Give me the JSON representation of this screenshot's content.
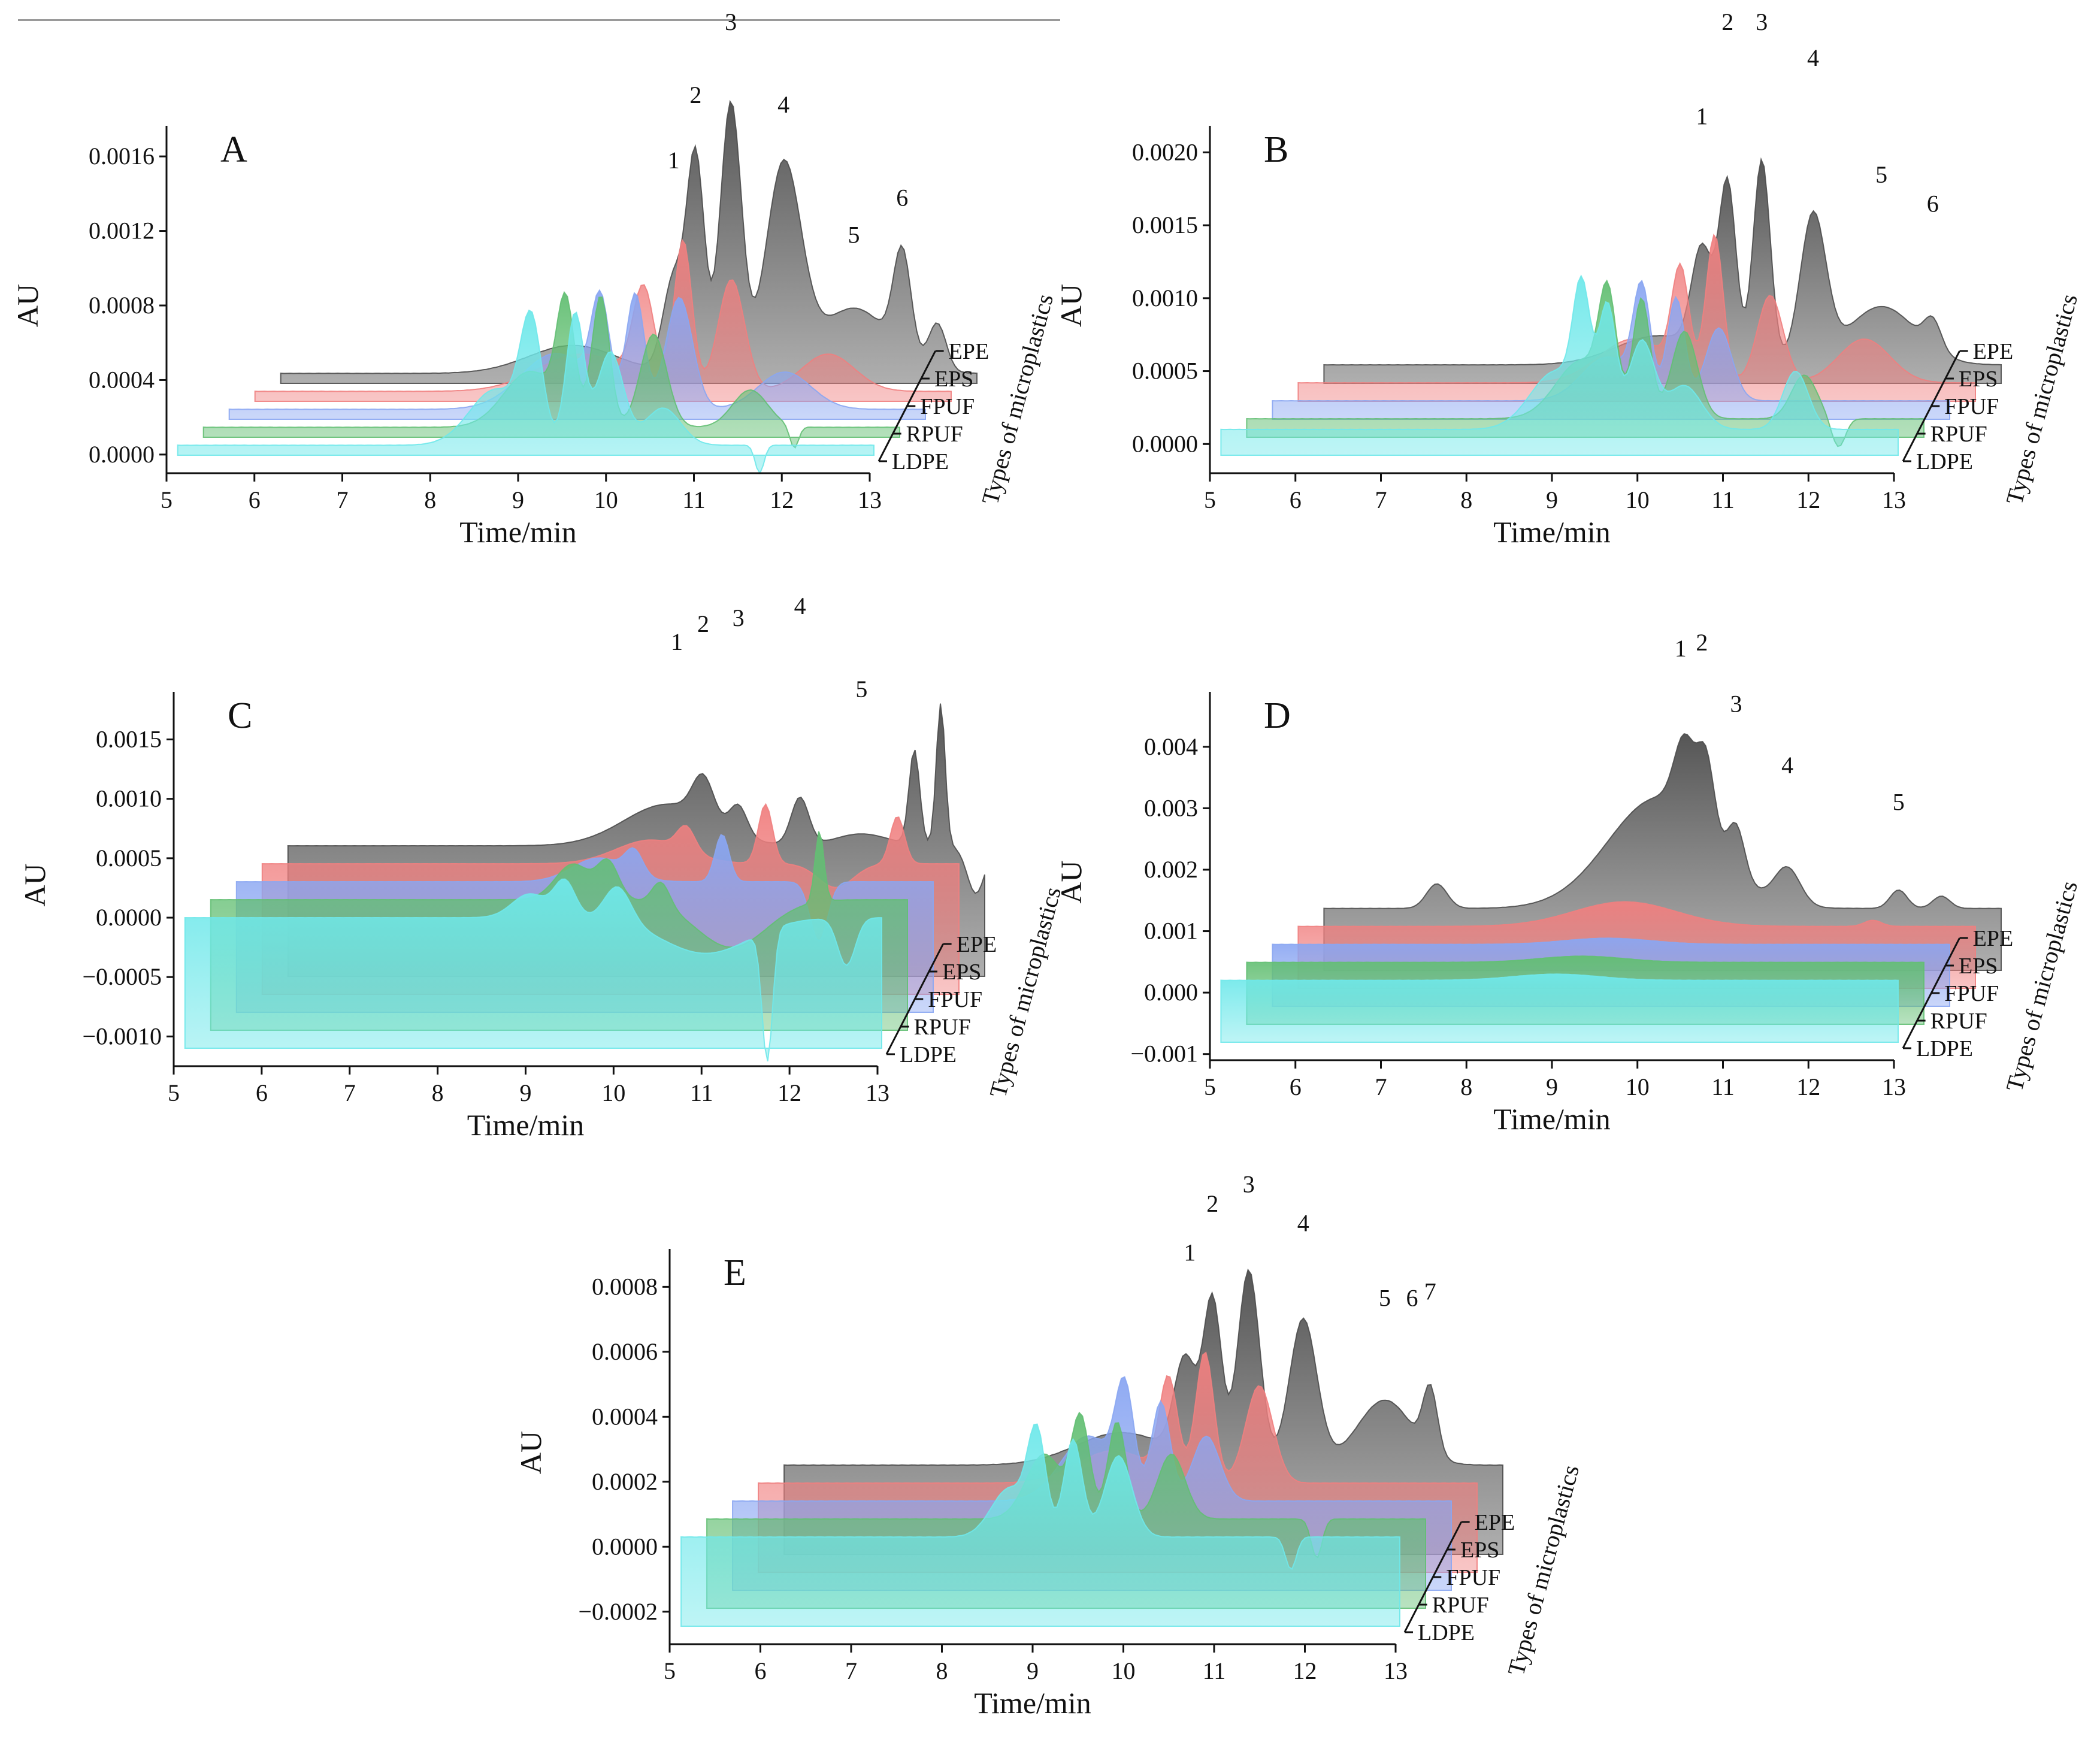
{
  "figure": {
    "depth_axis_title": "Types of microplastics",
    "series": [
      {
        "name": "EPE",
        "color": "#4d4d4d"
      },
      {
        "name": "EPS",
        "color": "#f08080"
      },
      {
        "name": "FPUF",
        "color": "#8aa6f2"
      },
      {
        "name": "RPUF",
        "color": "#63bf73"
      },
      {
        "name": "LDPE",
        "color": "#6fe8ea"
      }
    ]
  },
  "chart_data": [
    {
      "panel": "A",
      "type": "area",
      "xlabel": "Time/min",
      "ylabel": "AU",
      "zlabel": "Types of microplastics",
      "xlim": [
        5,
        13
      ],
      "ylim": [
        -0.0001,
        0.0017
      ],
      "x_ticks": [
        "5",
        "6",
        "7",
        "8",
        "9",
        "10",
        "11",
        "12",
        "13"
      ],
      "y_ticks": [
        {
          "v": 0.0,
          "label": "0.0000"
        },
        {
          "v": 0.0004,
          "label": "0.0004"
        },
        {
          "v": 0.0008,
          "label": "0.0008"
        },
        {
          "v": 0.0012,
          "label": "0.0012"
        },
        {
          "v": 0.0016,
          "label": "0.0016"
        }
      ],
      "series_order": [
        "EPE",
        "EPS",
        "FPUF",
        "RPUF",
        "LDPE"
      ],
      "baseline": {
        "EPE": 5e-05,
        "EPS": 5e-05,
        "FPUF": 5e-05,
        "RPUF": 5e-05,
        "LDPE": 5e-05
      },
      "peaks": {
        "EPE": [
          [
            8.4,
            0.00015,
            0.5
          ],
          [
            9.55,
            0.0005,
            0.12
          ],
          [
            9.8,
            0.00115,
            0.1
          ],
          [
            10.2,
            0.00145,
            0.12
          ],
          [
            10.8,
            0.0011,
            0.2
          ],
          [
            11.6,
            0.00035,
            0.4
          ],
          [
            12.15,
            0.00055,
            0.1
          ],
          [
            12.55,
            0.00025,
            0.1
          ]
        ],
        "EPS": [
          [
            8.8,
            0.0002,
            0.5
          ],
          [
            9.5,
            0.0005,
            0.12
          ],
          [
            9.95,
            0.0008,
            0.1
          ],
          [
            10.5,
            0.0006,
            0.15
          ],
          [
            11.6,
            0.0002,
            0.3
          ]
        ],
        "FPUF": [
          [
            8.8,
            0.0003,
            0.4
          ],
          [
            9.3,
            0.0005,
            0.1
          ],
          [
            9.7,
            0.0006,
            0.1
          ],
          [
            10.2,
            0.0006,
            0.15
          ],
          [
            11.4,
            0.0002,
            0.3
          ]
        ],
        "RPUF": [
          [
            8.8,
            0.0003,
            0.3
          ],
          [
            9.2,
            0.0006,
            0.1
          ],
          [
            9.6,
            0.0007,
            0.1
          ],
          [
            10.2,
            0.0005,
            0.15
          ],
          [
            11.3,
            0.0002,
            0.2
          ],
          [
            11.8,
            -0.00012,
            0.05
          ]
        ],
        "LDPE": [
          [
            8.7,
            0.0003,
            0.3
          ],
          [
            9.1,
            0.0006,
            0.12
          ],
          [
            9.6,
            0.0007,
            0.1
          ],
          [
            10.0,
            0.0005,
            0.15
          ],
          [
            10.6,
            0.0002,
            0.2
          ],
          [
            11.7,
            -0.00015,
            0.05
          ]
        ]
      },
      "peak_labels": [
        {
          "label": "1",
          "x": 9.55,
          "y": 0.00115
        },
        {
          "label": "2",
          "x": 9.8,
          "y": 0.0015
        },
        {
          "label": "3",
          "x": 10.2,
          "y": 0.0019
        },
        {
          "label": "4",
          "x": 10.8,
          "y": 0.00145
        },
        {
          "label": "5",
          "x": 11.6,
          "y": 0.00075
        },
        {
          "label": "6",
          "x": 12.15,
          "y": 0.00095
        }
      ]
    },
    {
      "panel": "B",
      "type": "area",
      "xlabel": "Time/min",
      "ylabel": "AU",
      "zlabel": "Types of microplastics",
      "xlim": [
        5,
        13
      ],
      "ylim": [
        -0.0002,
        0.0021
      ],
      "x_ticks": [
        "5",
        "6",
        "7",
        "8",
        "9",
        "10",
        "11",
        "12",
        "13"
      ],
      "y_ticks": [
        {
          "v": 0.0,
          "label": "0.0000"
        },
        {
          "v": 0.0005,
          "label": "0.0005"
        },
        {
          "v": 0.001,
          "label": "0.0010"
        },
        {
          "v": 0.0015,
          "label": "0.0015"
        },
        {
          "v": 0.002,
          "label": "0.0020"
        }
      ],
      "series_order": [
        "EPE",
        "EPS",
        "FPUF",
        "RPUF",
        "LDPE"
      ],
      "baseline": {
        "EPE": 5e-05,
        "EPS": 5e-05,
        "FPUF": 5e-05,
        "RPUF": 5e-05,
        "LDPE": 0.0001
      },
      "peaks": {
        "EPE": [
          [
            9.0,
            0.0002,
            0.5
          ],
          [
            9.5,
            0.0007,
            0.12
          ],
          [
            9.8,
            0.0012,
            0.1
          ],
          [
            10.2,
            0.0014,
            0.1
          ],
          [
            10.8,
            0.001,
            0.15
          ],
          [
            11.6,
            0.0004,
            0.4
          ],
          [
            12.2,
            0.0002,
            0.1
          ]
        ],
        "EPS": [
          [
            9.0,
            0.0003,
            0.4
          ],
          [
            9.55,
            0.0007,
            0.1
          ],
          [
            9.95,
            0.001,
            0.1
          ],
          [
            10.6,
            0.0006,
            0.15
          ],
          [
            11.7,
            0.0003,
            0.3
          ]
        ],
        "FPUF": [
          [
            9.0,
            0.0003,
            0.3
          ],
          [
            9.4,
            0.0007,
            0.1
          ],
          [
            9.8,
            0.0007,
            0.1
          ],
          [
            10.3,
            0.0005,
            0.15
          ]
        ],
        "RPUF": [
          [
            9.0,
            0.0004,
            0.3
          ],
          [
            9.3,
            0.0007,
            0.1
          ],
          [
            9.7,
            0.0008,
            0.1
          ],
          [
            10.2,
            0.0006,
            0.15
          ],
          [
            11.6,
            0.0003,
            0.15
          ],
          [
            12.0,
            -0.0002,
            0.08
          ]
        ],
        "LDPE": [
          [
            9.0,
            0.0004,
            0.3
          ],
          [
            9.3,
            0.0008,
            0.1
          ],
          [
            9.6,
            0.0008,
            0.1
          ],
          [
            10.0,
            0.0006,
            0.15
          ],
          [
            10.5,
            0.0003,
            0.2
          ],
          [
            11.8,
            0.0004,
            0.15
          ]
        ]
      },
      "peak_labels": [
        {
          "label": "1",
          "x": 9.5,
          "y": 0.0017
        },
        {
          "label": "2",
          "x": 9.8,
          "y": 0.0024
        },
        {
          "label": "3",
          "x": 10.2,
          "y": 0.00255
        },
        {
          "label": "4",
          "x": 10.8,
          "y": 0.0021
        },
        {
          "label": "5",
          "x": 11.6,
          "y": 0.0013
        },
        {
          "label": "6",
          "x": 12.2,
          "y": 0.0011
        }
      ]
    },
    {
      "panel": "C",
      "type": "area",
      "xlabel": "Time/min",
      "ylabel": "AU",
      "zlabel": "Types of microplastics",
      "xlim": [
        5,
        13
      ],
      "ylim": [
        -0.00125,
        0.0018
      ],
      "x_ticks": [
        "5",
        "6",
        "7",
        "8",
        "9",
        "10",
        "11",
        "12",
        "13"
      ],
      "y_ticks": [
        {
          "v": -0.001,
          "label": "−0.0010"
        },
        {
          "v": -0.0005,
          "label": "−0.0005"
        },
        {
          "v": 0.0,
          "label": "0.0000"
        },
        {
          "v": 0.0005,
          "label": "0.0005"
        },
        {
          "v": 0.001,
          "label": "0.0010"
        },
        {
          "v": 0.0015,
          "label": "0.0015"
        }
      ],
      "series_order": [
        "EPE",
        "EPS",
        "FPUF",
        "RPUF",
        "LDPE"
      ],
      "baseline": {
        "EPE": 0.0,
        "EPS": 0.0,
        "FPUF": 0.0,
        "RPUF": 0.0,
        "LDPE": 0.0
      },
      "peaks": {
        "EPE": [
          [
            9.4,
            0.00035,
            0.5
          ],
          [
            9.8,
            0.00035,
            0.12
          ],
          [
            10.2,
            0.00025,
            0.1
          ],
          [
            10.9,
            0.0004,
            0.1
          ],
          [
            11.6,
            0.0001,
            0.3
          ],
          [
            12.2,
            0.0008,
            0.06
          ],
          [
            12.5,
            0.0012,
            0.05
          ],
          [
            12.9,
            -0.0004,
            0.1
          ]
        ],
        "EPS": [
          [
            9.5,
            0.0002,
            0.4
          ],
          [
            9.9,
            0.0002,
            0.1
          ],
          [
            10.8,
            0.0005,
            0.08
          ],
          [
            11.6,
            -0.0002,
            0.2
          ],
          [
            12.3,
            0.0004,
            0.08
          ]
        ],
        "FPUF": [
          [
            9.2,
            0.0002,
            0.3
          ],
          [
            9.6,
            0.0002,
            0.1
          ],
          [
            10.6,
            0.0004,
            0.08
          ],
          [
            11.7,
            -0.0005,
            0.1
          ]
        ],
        "RPUF": [
          [
            9.2,
            0.0003,
            0.2
          ],
          [
            9.6,
            0.0003,
            0.12
          ],
          [
            10.2,
            0.0002,
            0.1
          ],
          [
            11.0,
            -0.0004,
            0.4
          ],
          [
            12.0,
            0.0006,
            0.05
          ]
        ],
        "LDPE": [
          [
            9.0,
            0.0002,
            0.2
          ],
          [
            9.4,
            0.0003,
            0.12
          ],
          [
            10.0,
            0.0003,
            0.15
          ],
          [
            11.0,
            -0.0003,
            0.5
          ],
          [
            11.7,
            -0.0011,
            0.06
          ],
          [
            12.6,
            -0.0004,
            0.1
          ]
        ]
      },
      "peak_labels": [
        {
          "label": "1",
          "x": 9.5,
          "y": 0.00165
        },
        {
          "label": "2",
          "x": 9.8,
          "y": 0.0018
        },
        {
          "label": "3",
          "x": 10.2,
          "y": 0.00185
        },
        {
          "label": "4",
          "x": 10.9,
          "y": 0.00195
        },
        {
          "label": "5",
          "x": 11.6,
          "y": 0.00125
        }
      ]
    },
    {
      "panel": "D",
      "type": "area",
      "xlabel": "Time/min",
      "ylabel": "AU",
      "zlabel": "Types of microplastics",
      "xlim": [
        5,
        13
      ],
      "ylim": [
        -0.0011,
        0.0047
      ],
      "x_ticks": [
        "5",
        "6",
        "7",
        "8",
        "9",
        "10",
        "11",
        "12",
        "13"
      ],
      "y_ticks": [
        {
          "v": -0.001,
          "label": "−0.001"
        },
        {
          "v": 0.0,
          "label": "0.000"
        },
        {
          "v": 0.001,
          "label": "0.001"
        },
        {
          "v": 0.002,
          "label": "0.002"
        },
        {
          "v": 0.003,
          "label": "0.003"
        },
        {
          "v": 0.004,
          "label": "0.004"
        }
      ],
      "series_order": [
        "EPE",
        "EPS",
        "FPUF",
        "RPUF",
        "LDPE"
      ],
      "baseline": {
        "EPE": 0.0002,
        "EPS": 0.0002,
        "FPUF": 0.0002,
        "RPUF": 0.0002,
        "LDPE": 0.0002
      },
      "peaks": {
        "EPE": [
          [
            6.4,
            0.0004,
            0.12
          ],
          [
            9.0,
            0.0018,
            0.6
          ],
          [
            9.3,
            0.0012,
            0.12
          ],
          [
            9.55,
            0.0013,
            0.1
          ],
          [
            9.9,
            0.0008,
            0.1
          ],
          [
            10.5,
            0.0006,
            0.15
          ],
          [
            11.8,
            0.0003,
            0.1
          ],
          [
            12.3,
            0.0002,
            0.1
          ]
        ],
        "EPS": [
          [
            8.9,
            0.0004,
            0.6
          ],
          [
            11.8,
            0.0001,
            0.1
          ]
        ],
        "FPUF": [
          [
            9.0,
            0.0001,
            0.5
          ]
        ],
        "RPUF": [
          [
            9.0,
            0.0001,
            0.5
          ]
        ],
        "LDPE": [
          [
            9.0,
            0.0001,
            0.5
          ]
        ]
      },
      "peak_labels": [
        {
          "label": "1",
          "x": 9.25,
          "y": 0.0043
        },
        {
          "label": "2",
          "x": 9.5,
          "y": 0.0044
        },
        {
          "label": "3",
          "x": 9.9,
          "y": 0.0034
        },
        {
          "label": "4",
          "x": 10.5,
          "y": 0.0024
        },
        {
          "label": "5",
          "x": 11.8,
          "y": 0.0018
        }
      ]
    },
    {
      "panel": "E",
      "type": "area",
      "xlabel": "Time/min",
      "ylabel": "AU",
      "zlabel": "Types of microplastics",
      "xlim": [
        5,
        13
      ],
      "ylim": [
        -0.0003,
        0.00088
      ],
      "x_ticks": [
        "5",
        "6",
        "7",
        "8",
        "9",
        "10",
        "11",
        "12",
        "13"
      ],
      "y_ticks": [
        {
          "v": -0.0002,
          "label": "−0.0002"
        },
        {
          "v": 0.0,
          "label": "0.0000"
        },
        {
          "v": 0.0002,
          "label": "0.0002"
        },
        {
          "v": 0.0004,
          "label": "0.0004"
        },
        {
          "v": 0.0006,
          "label": "0.0006"
        },
        {
          "v": 0.0008,
          "label": "0.0008"
        }
      ],
      "series_order": [
        "EPE",
        "EPS",
        "FPUF",
        "RPUF",
        "LDPE"
      ],
      "baseline": {
        "EPE": 3e-05,
        "EPS": 3e-05,
        "FPUF": 3e-05,
        "RPUF": 3e-05,
        "LDPE": 3e-05
      },
      "peaks": {
        "EPE": [
          [
            8.8,
            0.0001,
            0.5
          ],
          [
            9.5,
            0.0003,
            0.12
          ],
          [
            9.8,
            0.0005,
            0.1
          ],
          [
            10.2,
            0.0006,
            0.12
          ],
          [
            10.8,
            0.00045,
            0.15
          ],
          [
            11.7,
            0.0002,
            0.3
          ],
          [
            12.2,
            0.0002,
            0.08
          ]
        ],
        "EPS": [
          [
            9.0,
            0.0001,
            0.4
          ],
          [
            9.6,
            0.0003,
            0.1
          ],
          [
            10.0,
            0.0004,
            0.1
          ],
          [
            10.6,
            0.0003,
            0.15
          ]
        ],
        "FPUF": [
          [
            9.0,
            0.0002,
            0.3
          ],
          [
            9.4,
            0.0003,
            0.1
          ],
          [
            9.8,
            0.0003,
            0.1
          ],
          [
            10.3,
            0.0002,
            0.15
          ]
        ],
        "RPUF": [
          [
            8.8,
            0.0002,
            0.2
          ],
          [
            9.2,
            0.0003,
            0.1
          ],
          [
            9.6,
            0.0003,
            0.1
          ],
          [
            10.2,
            0.0002,
            0.15
          ],
          [
            11.8,
            -0.00012,
            0.06
          ]
        ],
        "LDPE": [
          [
            8.7,
            0.00015,
            0.2
          ],
          [
            9.0,
            0.0003,
            0.1
          ],
          [
            9.4,
            0.0003,
            0.1
          ],
          [
            9.9,
            0.00025,
            0.15
          ],
          [
            11.8,
            -0.0001,
            0.06
          ]
        ]
      },
      "peak_labels": [
        {
          "label": "1",
          "x": 9.55,
          "y": 0.00066
        },
        {
          "label": "2",
          "x": 9.8,
          "y": 0.00081
        },
        {
          "label": "3",
          "x": 10.2,
          "y": 0.00087
        },
        {
          "label": "4",
          "x": 10.8,
          "y": 0.00075
        },
        {
          "label": "5",
          "x": 11.7,
          "y": 0.00052
        },
        {
          "label": "6",
          "x": 12.0,
          "y": 0.00052
        },
        {
          "label": "7",
          "x": 12.2,
          "y": 0.00054
        }
      ]
    }
  ]
}
